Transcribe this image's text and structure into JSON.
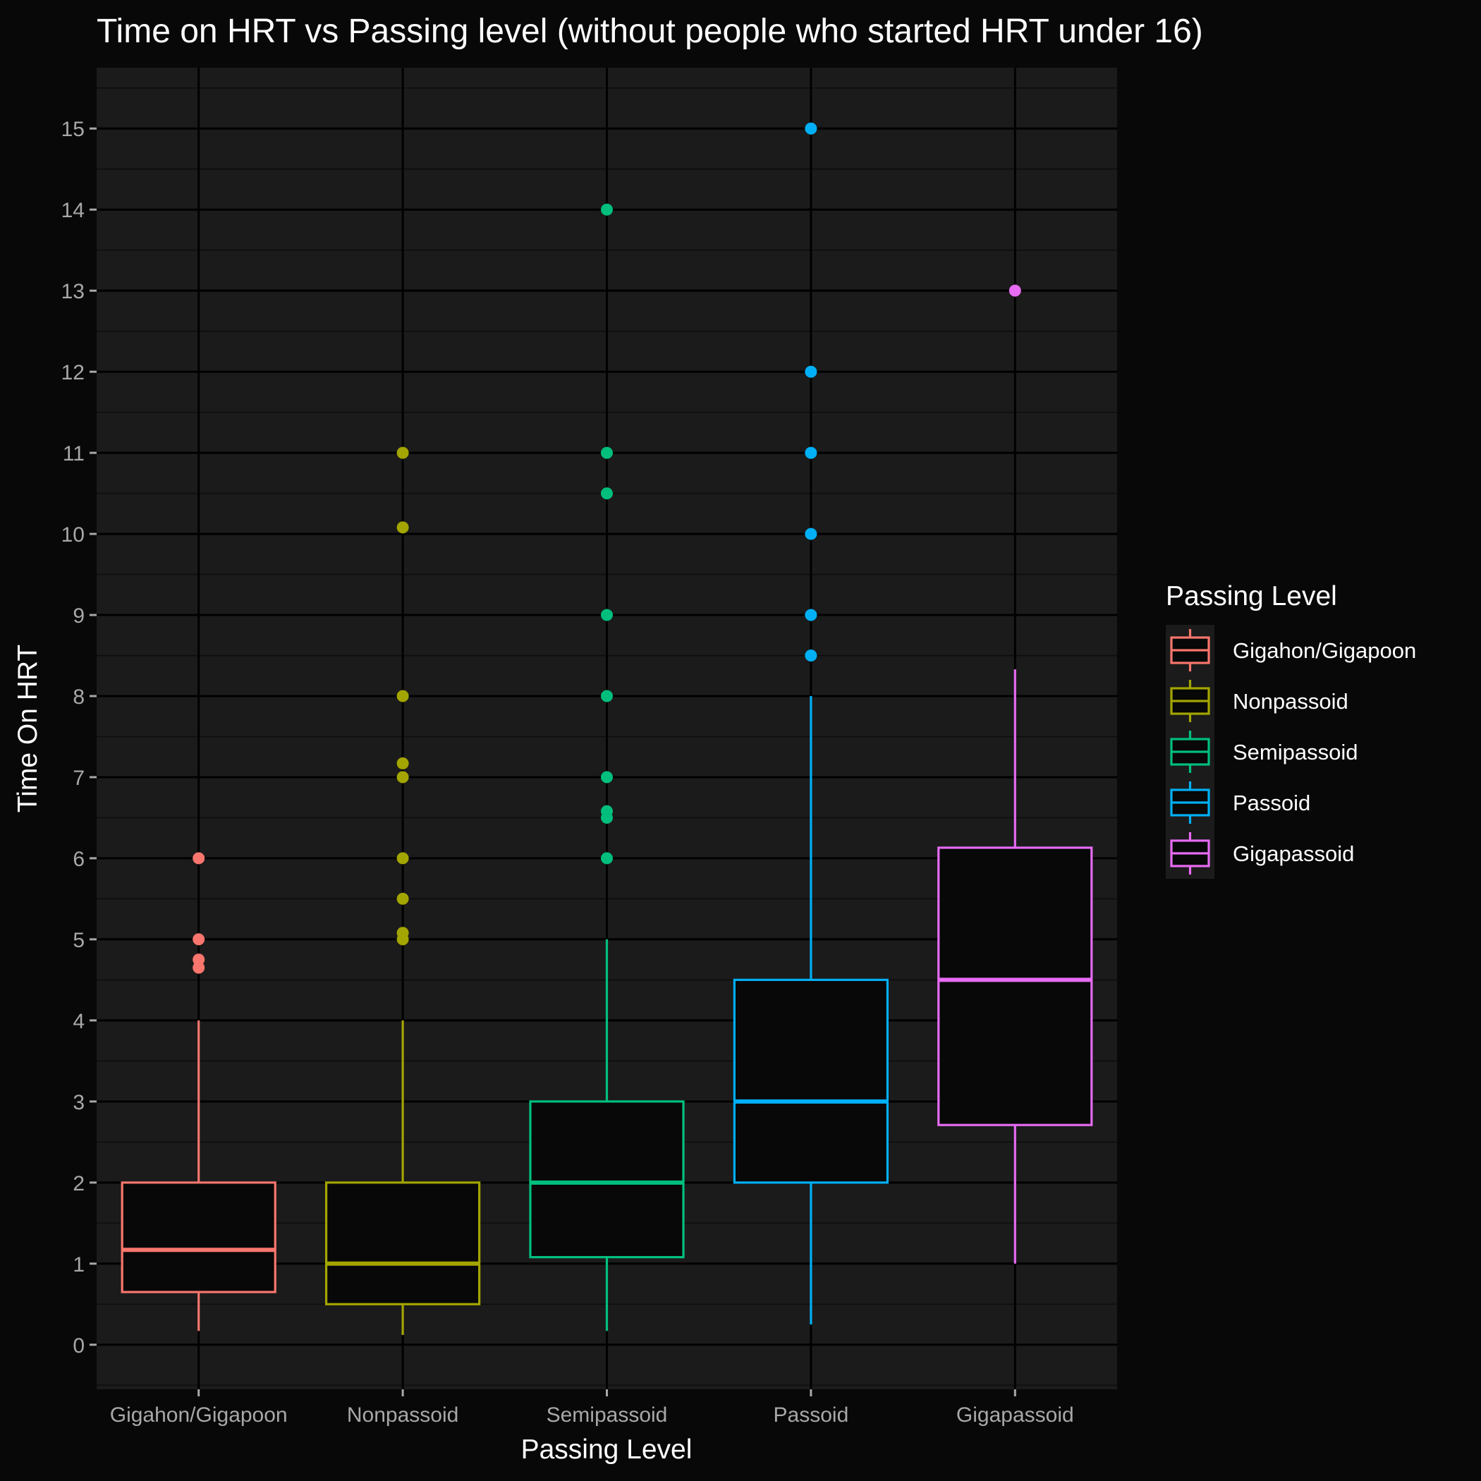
{
  "chart_data": {
    "type": "boxplot",
    "title": "Time on HRT vs Passing level (without people who started HRT under 16)",
    "xlabel": "Passing Level",
    "ylabel": "Time On HRT",
    "ylim": [
      -0.55,
      15.75
    ],
    "yticks": [
      0,
      1,
      2,
      3,
      4,
      5,
      6,
      7,
      8,
      9,
      10,
      11,
      12,
      13,
      14,
      15
    ],
    "grid": true,
    "legend": {
      "title": "Passing Level",
      "position": "right"
    },
    "categories": [
      "Gigahon/Gigapoon",
      "Nonpassoid",
      "Semipassoid",
      "Passoid",
      "Gigapassoid"
    ],
    "series": [
      {
        "name": "Gigahon/Gigapoon",
        "color": "#F8766D",
        "whisker_low": 0.17,
        "q1": 0.65,
        "median": 1.17,
        "q3": 2.0,
        "whisker_high": 4.0,
        "outliers": [
          6.0,
          5.0,
          4.75,
          4.65
        ]
      },
      {
        "name": "Nonpassoid",
        "color": "#A3A500",
        "whisker_low": 0.12,
        "q1": 0.5,
        "median": 1.0,
        "q3": 2.0,
        "whisker_high": 4.0,
        "outliers": [
          11.0,
          10.08,
          8.0,
          7.17,
          7.0,
          6.0,
          5.5,
          5.08,
          5.0
        ]
      },
      {
        "name": "Semipassoid",
        "color": "#00BF7D",
        "whisker_low": 0.17,
        "q1": 1.08,
        "median": 2.0,
        "q3": 3.0,
        "whisker_high": 5.0,
        "outliers": [
          14.0,
          11.0,
          10.5,
          9.0,
          8.0,
          7.0,
          6.58,
          6.5,
          6.0
        ]
      },
      {
        "name": "Passoid",
        "color": "#00B0F6",
        "whisker_low": 0.25,
        "q1": 2.0,
        "median": 3.0,
        "q3": 4.5,
        "whisker_high": 8.0,
        "outliers": [
          15.0,
          12.0,
          11.0,
          10.0,
          9.0,
          8.5
        ]
      },
      {
        "name": "Gigapassoid",
        "color": "#E76BF3",
        "whisker_low": 1.0,
        "q1": 2.71,
        "median": 4.5,
        "q3": 6.13,
        "whisker_high": 8.33,
        "outliers": [
          13.0
        ]
      }
    ]
  }
}
